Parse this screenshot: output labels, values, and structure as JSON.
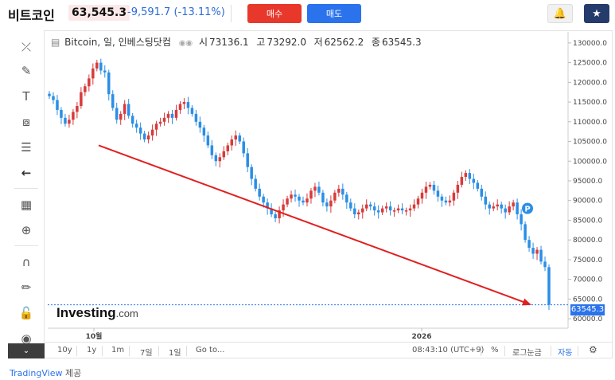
{
  "header": {
    "title": "비트코인",
    "price": "63,545.3",
    "change": "-9,591.7 (-13.11%)",
    "buy_label": "매수",
    "sell_label": "매도",
    "alert_icon": "bell-plus-icon",
    "star_icon": "star-icon"
  },
  "legend": {
    "symbol": "Bitcoin, 일, 인베스팅닷컴",
    "open_label": "시",
    "open": "73136.1",
    "high_label": "고",
    "high": "73292.0",
    "low_label": "저",
    "low": "62562.2",
    "close_label": "종",
    "close": "63545.3"
  },
  "toolbar": {
    "tools": [
      "crosshair-icon",
      "trendline-icon",
      "text-icon",
      "pattern-icon",
      "fib-icon",
      "back-icon",
      "measure-icon",
      "zoom-icon",
      "magnet-icon",
      "lock-draw-icon",
      "unlock-icon",
      "eye-icon"
    ]
  },
  "chart_data": {
    "type": "candlestick",
    "x_tick_labels": [
      "10월",
      "2026"
    ],
    "y_ticks": [
      60000,
      65000,
      70000,
      75000,
      80000,
      85000,
      90000,
      95000,
      100000,
      105000,
      110000,
      115000,
      120000,
      125000,
      130000
    ],
    "y_tick_labels": [
      "60000.0",
      "65000.0",
      "70000.0",
      "75000.0",
      "80000.0",
      "85000.0",
      "90000.0",
      "95000.0",
      "100000.0",
      "105000.0",
      "110000.0",
      "115000.0",
      "120000.0",
      "125000.0",
      "130000.0"
    ],
    "ylim": [
      58000,
      132000
    ],
    "current_price": 63545.3,
    "current_price_label": "63545.3",
    "up_color": "#d83a3a",
    "down_color": "#2a8ee6",
    "closes": [
      116500,
      115500,
      113000,
      111000,
      109500,
      110500,
      112500,
      114000,
      117500,
      119000,
      121000,
      123500,
      125000,
      123000,
      122500,
      117000,
      113500,
      110500,
      112000,
      114500,
      111500,
      109500,
      108500,
      107000,
      105500,
      106500,
      108000,
      109500,
      110000,
      111000,
      112000,
      111000,
      113000,
      114500,
      115000,
      113500,
      112000,
      110000,
      108500,
      106500,
      104000,
      101500,
      100000,
      101000,
      102500,
      104000,
      105500,
      106500,
      105000,
      102000,
      98500,
      95500,
      93000,
      91000,
      89500,
      88000,
      86500,
      85500,
      87500,
      89000,
      90500,
      91500,
      91000,
      90000,
      89500,
      90500,
      92500,
      93500,
      92000,
      89500,
      88500,
      90000,
      92000,
      93000,
      91500,
      89500,
      88000,
      86500,
      87000,
      88000,
      89000,
      88500,
      87500,
      87000,
      88000,
      88500,
      87500,
      87500,
      88000,
      87500,
      87500,
      88000,
      89000,
      90500,
      92000,
      93500,
      94000,
      92500,
      91000,
      90000,
      89500,
      90000,
      92000,
      94000,
      96000,
      97000,
      95500,
      94500,
      93000,
      91000,
      89000,
      88000,
      88500,
      89000,
      88000,
      87000,
      88500,
      89500,
      86500,
      84000,
      80000,
      78000,
      76500,
      77500,
      74500,
      73100,
      63545
    ],
    "trend_arrow": {
      "from": [
        0.0,
        104000
      ],
      "to": [
        1.0,
        63500
      ],
      "color": "#e02020"
    },
    "annotation_badge": "P",
    "watermark": "Investing.com"
  },
  "bottombar": {
    "ranges": [
      "10y",
      "1y",
      "1m",
      "7일",
      "1일"
    ],
    "goto": "Go to...",
    "time": "08:43:10 (UTC+9)",
    "percent": "%",
    "log": "로그눈금",
    "auto": "자동",
    "settings_icon": "gear-icon"
  },
  "footer": {
    "provider": "TradingView",
    "suffix": "제공"
  }
}
